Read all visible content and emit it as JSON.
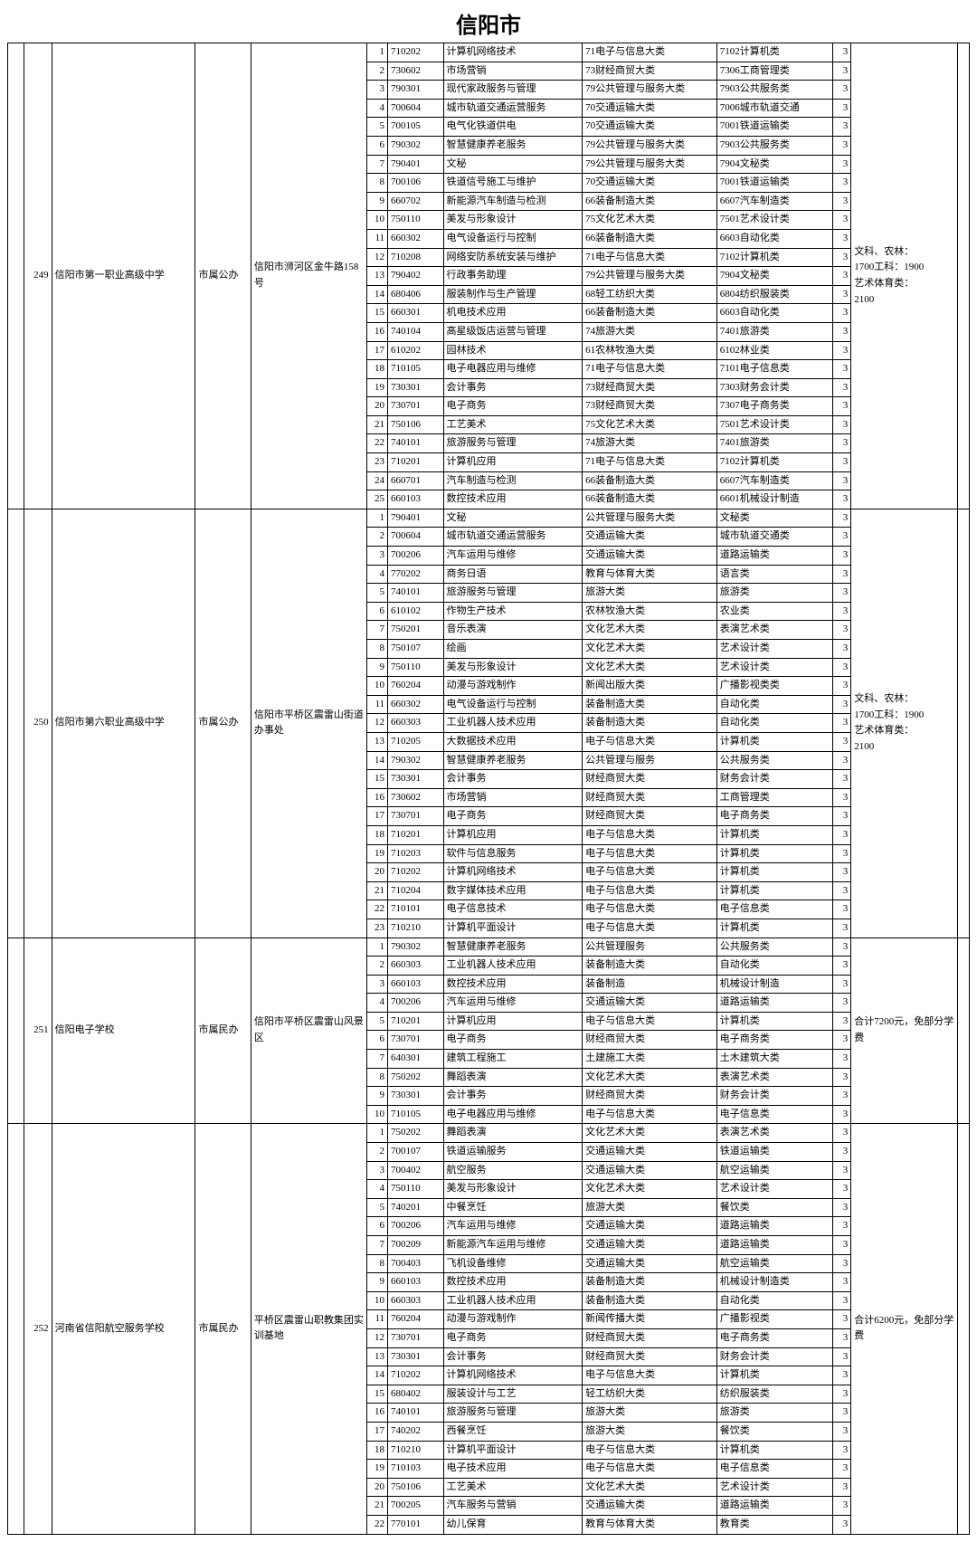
{
  "title": "信阳市",
  "schools": [
    {
      "id": "249",
      "name": "信阳市第一职业高级中学",
      "ownership": "市属公办",
      "address": "信阳市浉河区金牛路158号",
      "note": "文科、农林：\n1700工科：1900\n艺术体育类：\n2100",
      "majors": [
        {
          "n": "1",
          "code": "710202",
          "name": "计算机网络技术",
          "cat": "71电子与信息大类",
          "sub": "7102计算机类",
          "y": "3"
        },
        {
          "n": "2",
          "code": "730602",
          "name": "市场营销",
          "cat": "73财经商贸大类",
          "sub": "7306工商管理类",
          "y": "3"
        },
        {
          "n": "3",
          "code": "790301",
          "name": "现代家政服务与管理",
          "cat": "79公共管理与服务大类",
          "sub": "7903公共服务类",
          "y": "3"
        },
        {
          "n": "4",
          "code": "700604",
          "name": "城市轨道交通运营服务",
          "cat": "70交通运输大类",
          "sub": "7006城市轨道交通",
          "y": "3"
        },
        {
          "n": "5",
          "code": "700105",
          "name": "电气化铁道供电",
          "cat": "70交通运输大类",
          "sub": "7001铁道运输类",
          "y": "3"
        },
        {
          "n": "6",
          "code": "790302",
          "name": "智慧健康养老服务",
          "cat": "79公共管理与服务大类",
          "sub": "7903公共服务类",
          "y": "3"
        },
        {
          "n": "7",
          "code": "790401",
          "name": "文秘",
          "cat": "79公共管理与服务大类",
          "sub": "7904文秘类",
          "y": "3"
        },
        {
          "n": "8",
          "code": "700106",
          "name": "铁道信号施工与维护",
          "cat": "70交通运输大类",
          "sub": "7001铁道运输类",
          "y": "3"
        },
        {
          "n": "9",
          "code": "660702",
          "name": "新能源汽车制造与检测",
          "cat": "66装备制造大类",
          "sub": "6607汽车制造类",
          "y": "3"
        },
        {
          "n": "10",
          "code": "750110",
          "name": "美发与形象设计",
          "cat": "75文化艺术大类",
          "sub": "7501艺术设计类",
          "y": "3"
        },
        {
          "n": "11",
          "code": "660302",
          "name": "电气设备运行与控制",
          "cat": "66装备制造大类",
          "sub": "6603自动化类",
          "y": "3"
        },
        {
          "n": "12",
          "code": "710208",
          "name": "网络安防系统安装与维护",
          "cat": "71电子与信息大类",
          "sub": "7102计算机类",
          "y": "3"
        },
        {
          "n": "13",
          "code": "790402",
          "name": "行政事务助理",
          "cat": "79公共管理与服务大类",
          "sub": "7904文秘类",
          "y": "3"
        },
        {
          "n": "14",
          "code": "680406",
          "name": "服装制作与生产管理",
          "cat": "68轻工纺织大类",
          "sub": "6804纺织服装类",
          "y": "3"
        },
        {
          "n": "15",
          "code": "660301",
          "name": "机电技术应用",
          "cat": "66装备制造大类",
          "sub": "6603自动化类",
          "y": "3"
        },
        {
          "n": "16",
          "code": "740104",
          "name": "高星级饭店运营与管理",
          "cat": "74旅游大类",
          "sub": "7401旅游类",
          "y": "3"
        },
        {
          "n": "17",
          "code": "610202",
          "name": "园林技术",
          "cat": "61农林牧渔大类",
          "sub": "6102林业类",
          "y": "3"
        },
        {
          "n": "18",
          "code": "710105",
          "name": "电子电器应用与维修",
          "cat": "71电子与信息大类",
          "sub": "7101电子信息类",
          "y": "3"
        },
        {
          "n": "19",
          "code": "730301",
          "name": "会计事务",
          "cat": "73财经商贸大类",
          "sub": "7303财务会计类",
          "y": "3"
        },
        {
          "n": "20",
          "code": "730701",
          "name": "电子商务",
          "cat": "73财经商贸大类",
          "sub": "7307电子商务类",
          "y": "3"
        },
        {
          "n": "21",
          "code": "750106",
          "name": "工艺美术",
          "cat": "75文化艺术大类",
          "sub": "7501艺术设计类",
          "y": "3"
        },
        {
          "n": "22",
          "code": "740101",
          "name": "旅游服务与管理",
          "cat": "74旅游大类",
          "sub": "7401旅游类",
          "y": "3"
        },
        {
          "n": "23",
          "code": "710201",
          "name": "计算机应用",
          "cat": "71电子与信息大类",
          "sub": "7102计算机类",
          "y": "3"
        },
        {
          "n": "24",
          "code": "660701",
          "name": "汽车制造与检测",
          "cat": "66装备制造大类",
          "sub": "6607汽车制造类",
          "y": "3"
        },
        {
          "n": "25",
          "code": "660103",
          "name": "数控技术应用",
          "cat": "66装备制造大类",
          "sub": "6601机械设计制造",
          "y": "3"
        }
      ]
    },
    {
      "id": "250",
      "name": "信阳市第六职业高级中学",
      "ownership": "市属公办",
      "address": "信阳市平桥区震雷山街道办事处",
      "note": "文科、农林：\n1700工科：1900\n艺术体育类：\n2100",
      "majors": [
        {
          "n": "1",
          "code": "790401",
          "name": "文秘",
          "cat": "公共管理与服务大类",
          "sub": "文秘类",
          "y": "3"
        },
        {
          "n": "2",
          "code": "700604",
          "name": "城市轨道交通运营服务",
          "cat": "交通运输大类",
          "sub": "城市轨道交通类",
          "y": "3"
        },
        {
          "n": "3",
          "code": "700206",
          "name": "汽车运用与维修",
          "cat": "交通运输大类",
          "sub": "道路运输类",
          "y": "3"
        },
        {
          "n": "4",
          "code": "770202",
          "name": "商务日语",
          "cat": "教育与体育大类",
          "sub": "语言类",
          "y": "3"
        },
        {
          "n": "5",
          "code": "740101",
          "name": "旅游服务与管理",
          "cat": "旅游大类",
          "sub": "旅游类",
          "y": "3"
        },
        {
          "n": "6",
          "code": "610102",
          "name": "作物生产技术",
          "cat": "农林牧渔大类",
          "sub": "农业类",
          "y": "3"
        },
        {
          "n": "7",
          "code": "750201",
          "name": "音乐表演",
          "cat": "文化艺术大类",
          "sub": "表演艺术类",
          "y": "3"
        },
        {
          "n": "8",
          "code": "750107",
          "name": "绘画",
          "cat": "文化艺术大类",
          "sub": "艺术设计类",
          "y": "3"
        },
        {
          "n": "9",
          "code": "750110",
          "name": "美发与形象设计",
          "cat": "文化艺术大类",
          "sub": "艺术设计类",
          "y": "3"
        },
        {
          "n": "10",
          "code": "760204",
          "name": "动漫与游戏制作",
          "cat": "新闻出版大类",
          "sub": "广播影视类类",
          "y": "3"
        },
        {
          "n": "11",
          "code": "660302",
          "name": "电气设备运行与控制",
          "cat": "装备制造大类",
          "sub": "自动化类",
          "y": "3"
        },
        {
          "n": "12",
          "code": "660303",
          "name": "工业机器人技术应用",
          "cat": "装备制造大类",
          "sub": "自动化类",
          "y": "3"
        },
        {
          "n": "13",
          "code": "710205",
          "name": "大数据技术应用",
          "cat": "电子与信息大类",
          "sub": "计算机类",
          "y": "3"
        },
        {
          "n": "14",
          "code": "790302",
          "name": "智慧健康养老服务",
          "cat": "公共管理与服务",
          "sub": "公共服务类",
          "y": "3"
        },
        {
          "n": "15",
          "code": "730301",
          "name": "会计事务",
          "cat": "财经商贸大类",
          "sub": "财务会计类",
          "y": "3"
        },
        {
          "n": "16",
          "code": "730602",
          "name": "市场营销",
          "cat": "财经商贸大类",
          "sub": "工商管理类",
          "y": "3"
        },
        {
          "n": "17",
          "code": "730701",
          "name": "电子商务",
          "cat": "财经商贸大类",
          "sub": "电子商务类",
          "y": "3"
        },
        {
          "n": "18",
          "code": "710201",
          "name": "计算机应用",
          "cat": "电子与信息大类",
          "sub": "计算机类",
          "y": "3"
        },
        {
          "n": "19",
          "code": "710203",
          "name": "软件与信息服务",
          "cat": "电子与信息大类",
          "sub": "计算机类",
          "y": "3"
        },
        {
          "n": "20",
          "code": "710202",
          "name": "计算机网络技术",
          "cat": "电子与信息大类",
          "sub": "计算机类",
          "y": "3"
        },
        {
          "n": "21",
          "code": "710204",
          "name": "数字媒体技术应用",
          "cat": "电子与信息大类",
          "sub": "计算机类",
          "y": "3"
        },
        {
          "n": "22",
          "code": "710101",
          "name": "电子信息技术",
          "cat": "电子与信息大类",
          "sub": "电子信息类",
          "y": "3"
        },
        {
          "n": "23",
          "code": "710210",
          "name": "计算机平面设计",
          "cat": "电子与信息大类",
          "sub": "计算机类",
          "y": "3"
        }
      ]
    },
    {
      "id": "251",
      "name": "信阳电子学校",
      "ownership": "市属民办",
      "address": "信阳市平桥区震雷山风景区",
      "note": "合计7200元，免部分学费",
      "majors": [
        {
          "n": "1",
          "code": "790302",
          "name": "智慧健康养老服务",
          "cat": "公共管理服务",
          "sub": "公共服务类",
          "y": "3"
        },
        {
          "n": "2",
          "code": "660303",
          "name": "工业机器人技术应用",
          "cat": "装备制造大类",
          "sub": "自动化类",
          "y": "3"
        },
        {
          "n": "3",
          "code": "660103",
          "name": "数控技术应用",
          "cat": "装备制造",
          "sub": "机械设计制造",
          "y": "3"
        },
        {
          "n": "4",
          "code": "700206",
          "name": "汽车运用与维修",
          "cat": "交通运输大类",
          "sub": "道路运输类",
          "y": "3"
        },
        {
          "n": "5",
          "code": "710201",
          "name": "计算机应用",
          "cat": "电子与信息大类",
          "sub": "计算机类",
          "y": "3"
        },
        {
          "n": "6",
          "code": "730701",
          "name": "电子商务",
          "cat": "财经商贸大类",
          "sub": "电子商务类",
          "y": "3"
        },
        {
          "n": "7",
          "code": "640301",
          "name": "建筑工程施工",
          "cat": "土建施工大类",
          "sub": "土木建筑大类",
          "y": "3"
        },
        {
          "n": "8",
          "code": "750202",
          "name": "舞蹈表演",
          "cat": "文化艺术大类",
          "sub": "表演艺术类",
          "y": "3"
        },
        {
          "n": "9",
          "code": "730301",
          "name": "会计事务",
          "cat": "财经商贸大类",
          "sub": "财务会计类",
          "y": "3"
        },
        {
          "n": "10",
          "code": "710105",
          "name": "电子电器应用与维修",
          "cat": "电子与信息大类",
          "sub": "电子信息类",
          "y": "3"
        }
      ]
    },
    {
      "id": "252",
      "name": "河南省信阳航空服务学校",
      "ownership": "市属民办",
      "address": "平桥区震雷山职教集团实训基地",
      "note": "合计6200元，免部分学费",
      "majors": [
        {
          "n": "1",
          "code": "750202",
          "name": "舞蹈表演",
          "cat": "文化艺术大类",
          "sub": "表演艺术类",
          "y": "3"
        },
        {
          "n": "2",
          "code": "700107",
          "name": "铁道运输服务",
          "cat": "交通运输大类",
          "sub": "铁道运输类",
          "y": "3"
        },
        {
          "n": "3",
          "code": "700402",
          "name": "航空服务",
          "cat": "交通运输大类",
          "sub": "航空运输类",
          "y": "3"
        },
        {
          "n": "4",
          "code": "750110",
          "name": "美发与形象设计",
          "cat": "文化艺术大类",
          "sub": "艺术设计类",
          "y": "3"
        },
        {
          "n": "5",
          "code": "740201",
          "name": "中餐烹饪",
          "cat": "旅游大类",
          "sub": "餐饮类",
          "y": "3"
        },
        {
          "n": "6",
          "code": "700206",
          "name": "汽车运用与维修",
          "cat": "交通运输大类",
          "sub": "道路运输类",
          "y": "3"
        },
        {
          "n": "7",
          "code": "700209",
          "name": "新能源汽车运用与维修",
          "cat": "交通运输大类",
          "sub": "道路运输类",
          "y": "3"
        },
        {
          "n": "8",
          "code": "700403",
          "name": "飞机设备维修",
          "cat": "交通运输大类",
          "sub": "航空运输类",
          "y": "3"
        },
        {
          "n": "9",
          "code": "660103",
          "name": "数控技术应用",
          "cat": "装备制造大类",
          "sub": "机械设计制造类",
          "y": "3"
        },
        {
          "n": "10",
          "code": "660303",
          "name": "工业机器人技术应用",
          "cat": "装备制造大类",
          "sub": "自动化类",
          "y": "3"
        },
        {
          "n": "11",
          "code": "760204",
          "name": "动漫与游戏制作",
          "cat": "新闻传播大类",
          "sub": "广播影视类",
          "y": "3"
        },
        {
          "n": "12",
          "code": "730701",
          "name": "电子商务",
          "cat": "财经商贸大类",
          "sub": "电子商务类",
          "y": "3"
        },
        {
          "n": "13",
          "code": "730301",
          "name": "会计事务",
          "cat": "财经商贸大类",
          "sub": "财务会计类",
          "y": "3"
        },
        {
          "n": "14",
          "code": "710202",
          "name": "计算机网络技术",
          "cat": "电子与信息大类",
          "sub": "计算机类",
          "y": "3"
        },
        {
          "n": "15",
          "code": "680402",
          "name": "服装设计与工艺",
          "cat": "轻工纺织大类",
          "sub": "纺织服装类",
          "y": "3"
        },
        {
          "n": "16",
          "code": "740101",
          "name": "旅游服务与管理",
          "cat": "旅游大类",
          "sub": "旅游类",
          "y": "3"
        },
        {
          "n": "17",
          "code": "740202",
          "name": "西餐烹饪",
          "cat": "旅游大类",
          "sub": "餐饮类",
          "y": "3"
        },
        {
          "n": "18",
          "code": "710210",
          "name": "计算机平面设计",
          "cat": "电子与信息大类",
          "sub": "计算机类",
          "y": "3"
        },
        {
          "n": "19",
          "code": "710103",
          "name": "电子技术应用",
          "cat": "电子与信息大类",
          "sub": "电子信息类",
          "y": "3"
        },
        {
          "n": "20",
          "code": "750106",
          "name": "工艺美术",
          "cat": "文化艺术大类",
          "sub": "艺术设计类",
          "y": "3"
        },
        {
          "n": "21",
          "code": "700205",
          "name": "汽车服务与营销",
          "cat": "交通运输大类",
          "sub": "道路运输类",
          "y": "3"
        },
        {
          "n": "22",
          "code": "770101",
          "name": "幼儿保育",
          "cat": "教育与体育大类",
          "sub": "教育类",
          "y": "3"
        }
      ]
    }
  ]
}
